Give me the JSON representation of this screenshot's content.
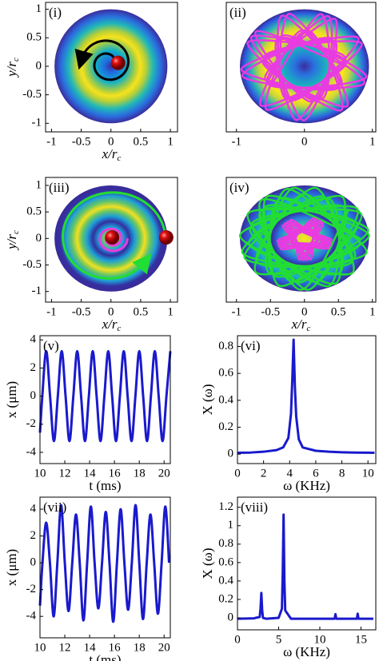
{
  "chart_data": [
    {
      "type": "heatmap",
      "label": "(i)",
      "xlim": [
        -1.1,
        1.12
      ],
      "ylim": [
        -1.15,
        1.12
      ],
      "xticks": [
        -1,
        -0.5,
        0,
        0.5,
        1
      ],
      "yticks": [
        -1,
        -0.5,
        0,
        0.5,
        1
      ],
      "xlabel": "x/r",
      "xlabel_sub": "c",
      "ylabel": "y/r",
      "ylabel_sub": "c"
    },
    {
      "type": "heatmap",
      "label": "(ii)",
      "xlim": [
        -1.15,
        1.05
      ],
      "ylim": [
        -1.15,
        1.12
      ],
      "xticks": [
        -1,
        0,
        1
      ]
    },
    {
      "type": "heatmap",
      "label": "(iii)",
      "xlim": [
        -1.1,
        1.12
      ],
      "ylim": [
        -1.2,
        1.15
      ],
      "xticks": [
        -1,
        -0.5,
        0,
        0.5,
        1
      ],
      "yticks": [
        -1,
        -0.5,
        0,
        0.5,
        1
      ],
      "xlabel": "x/r",
      "xlabel_sub": "c",
      "ylabel": "y/r",
      "ylabel_sub": "c"
    },
    {
      "type": "heatmap",
      "label": "(iv)",
      "xlim": [
        -1.15,
        1.05
      ],
      "ylim": [
        -1.2,
        1.15
      ],
      "xticks": [
        -1,
        -0.5,
        0,
        0.5,
        1
      ],
      "xlabel": "x/r",
      "xlabel_sub": "c"
    },
    {
      "type": "line",
      "label": "(v)",
      "xlim": [
        10,
        20.5
      ],
      "ylim": [
        -4.8,
        4.3
      ],
      "xticks": [
        10,
        12,
        14,
        16,
        18,
        20
      ],
      "yticks": [
        -4,
        -2,
        0,
        2,
        4
      ],
      "xlabel": "t (ms)",
      "ylabel": "x (μm)",
      "x": [
        10,
        10.1875,
        10.5,
        10.8125,
        11.125,
        11.4375,
        11.75,
        12.0625,
        12.375,
        12.6875,
        13,
        13.3125,
        13.625,
        13.9375,
        14.25,
        14.5625,
        14.875,
        15.1875,
        15.5,
        15.8125,
        16.125,
        16.4375,
        16.75,
        17.0625,
        17.375,
        17.6875,
        18,
        18.3125,
        18.625,
        18.9375,
        19.25,
        19.5625,
        19.875,
        20.1875,
        20.5
      ],
      "series": [
        {
          "color": "#1a1acc",
          "values": [
            -2.6,
            0,
            3.2,
            0,
            -3.2,
            0,
            3.2,
            0,
            -3.2,
            0,
            3.2,
            0,
            -3.2,
            0,
            3.2,
            0,
            -3.2,
            0,
            3.2,
            0,
            -3.2,
            0,
            3.2,
            0,
            -3.2,
            0,
            3.2,
            0,
            -3.2,
            0,
            3.2,
            0,
            -3.2,
            0,
            3.2
          ]
        }
      ]
    },
    {
      "type": "line",
      "label": "(vi)",
      "xlim": [
        0,
        10.6
      ],
      "ylim": [
        -0.07,
        0.88
      ],
      "xticks": [
        0,
        2,
        4,
        6,
        8,
        10
      ],
      "yticks": [
        0,
        0.2,
        0.4,
        0.6,
        0.8
      ],
      "xlabel": "ω (KHz)",
      "ylabel": "X (ω)",
      "x": [
        0,
        1,
        2,
        3,
        3.5,
        3.9,
        4.1,
        4.2,
        4.3,
        4.4,
        4.5,
        4.7,
        5,
        6,
        7,
        8,
        9,
        10,
        10.5
      ],
      "series": [
        {
          "color": "#1a1acc",
          "values": [
            0.01,
            0.012,
            0.018,
            0.03,
            0.05,
            0.12,
            0.3,
            0.55,
            0.85,
            0.5,
            0.28,
            0.11,
            0.05,
            0.025,
            0.018,
            0.014,
            0.012,
            0.011,
            0.01
          ]
        }
      ]
    },
    {
      "type": "line",
      "label": "(vii)",
      "xlim": [
        10,
        20.5
      ],
      "ylim": [
        -5.6,
        4.9
      ],
      "xticks": [
        10,
        12,
        14,
        16,
        18,
        20
      ],
      "yticks": [
        -4,
        -2,
        0,
        2,
        4
      ],
      "xlabel": "t (ms)",
      "ylabel": "x (μm)",
      "x": [
        10,
        10.2,
        10.5,
        10.8,
        11.1,
        11.4,
        11.7,
        12,
        12.3,
        12.6,
        12.9,
        13.2,
        13.5,
        13.8,
        14.1,
        14.4,
        14.7,
        15,
        15.3,
        15.6,
        15.9,
        16.2,
        16.5,
        16.8,
        17.1,
        17.4,
        17.7,
        18,
        18.3,
        18.6,
        18.9,
        19.2,
        19.5,
        19.8,
        20.1,
        20.4
      ],
      "series": [
        {
          "color": "#1a1acc",
          "values": [
            -3.2,
            0,
            3.0,
            0,
            -4.0,
            0,
            4.3,
            0,
            -3.6,
            0,
            3.6,
            0,
            -4.3,
            0,
            4.2,
            0,
            -3.4,
            0,
            3.8,
            0,
            -4.4,
            0,
            4.0,
            0,
            -3.5,
            0,
            4.3,
            0,
            -4.2,
            0,
            3.6,
            0,
            -3.8,
            0,
            4.2,
            0
          ]
        }
      ]
    },
    {
      "type": "line",
      "label": "(viii)",
      "xlim": [
        0,
        16.8
      ],
      "ylim": [
        -0.13,
        1.31
      ],
      "xticks": [
        0,
        5,
        10,
        15
      ],
      "yticks": [
        0,
        0.2,
        0.4,
        0.6,
        0.8,
        1,
        1.2
      ],
      "xlabel": "ω (KHz)",
      "ylabel": "X (ω)",
      "x": [
        0,
        2,
        2.7,
        2.8,
        2.9,
        3.0,
        3.1,
        3.5,
        5,
        5.4,
        5.5,
        5.6,
        5.7,
        5.8,
        6.5,
        11.8,
        11.9,
        12.0,
        14.5,
        14.6,
        14.7,
        16.5
      ],
      "series": [
        {
          "color": "#1a1acc",
          "values": [
            -0.01,
            -0.005,
            0.01,
            0.1,
            0.27,
            0.08,
            0.0,
            -0.01,
            0.0,
            0.1,
            0.5,
            1.12,
            0.4,
            0.08,
            -0.01,
            -0.01,
            0.04,
            -0.01,
            -0.01,
            0.045,
            -0.01,
            -0.01
          ]
        }
      ]
    }
  ]
}
